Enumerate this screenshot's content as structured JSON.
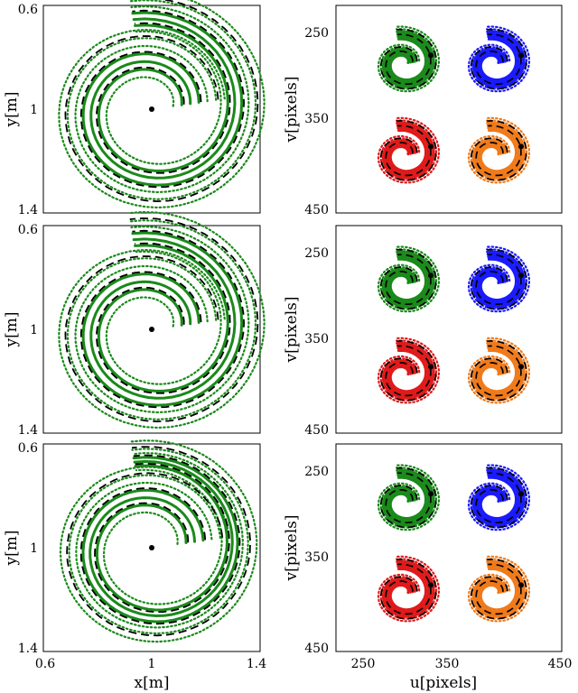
{
  "chart_data": [
    {
      "type": "line",
      "panel": "row1-left",
      "ylabel": "y[m]",
      "xlabel": "",
      "yticks": [
        "0.6",
        "1",
        "1.4"
      ],
      "xticks": [],
      "series_colors": [
        "#1a8a1a"
      ],
      "start_point": [
        1.0,
        1.0
      ]
    },
    {
      "type": "line",
      "panel": "row1-right",
      "ylabel": "v[pixels]",
      "xlabel": "",
      "yticks": [
        "250",
        "350",
        "450"
      ],
      "xticks": [],
      "series_colors": [
        "#1a8a1a",
        "#1a1aff",
        "#e01a1a",
        "#f07a1a"
      ]
    },
    {
      "type": "line",
      "panel": "row2-left",
      "ylabel": "y[m]",
      "xlabel": "",
      "yticks": [
        "0.6",
        "1",
        "1.4"
      ],
      "xticks": [],
      "series_colors": [
        "#1a8a1a"
      ],
      "start_point": [
        1.0,
        1.0
      ]
    },
    {
      "type": "line",
      "panel": "row2-right",
      "ylabel": "v[pixels]",
      "xlabel": "",
      "yticks": [
        "250",
        "350",
        "450"
      ],
      "xticks": [],
      "series_colors": [
        "#1a8a1a",
        "#1a1aff",
        "#e01a1a",
        "#f07a1a"
      ]
    },
    {
      "type": "line",
      "panel": "row3-left",
      "ylabel": "y[m]",
      "xlabel": "x[m]",
      "yticks": [
        "0.6",
        "1",
        "1.4"
      ],
      "xticks": [
        "0.6",
        "1",
        "1.4"
      ],
      "series_colors": [
        "#1a8a1a"
      ],
      "start_point": [
        1.0,
        1.0
      ]
    },
    {
      "type": "line",
      "panel": "row3-right",
      "ylabel": "v[pixels]",
      "xlabel": "u[pixels]",
      "yticks": [
        "250",
        "350",
        "450"
      ],
      "xticks": [
        "250",
        "350",
        "450"
      ],
      "series_colors": [
        "#1a8a1a",
        "#1a1aff",
        "#e01a1a",
        "#f07a1a"
      ]
    }
  ]
}
